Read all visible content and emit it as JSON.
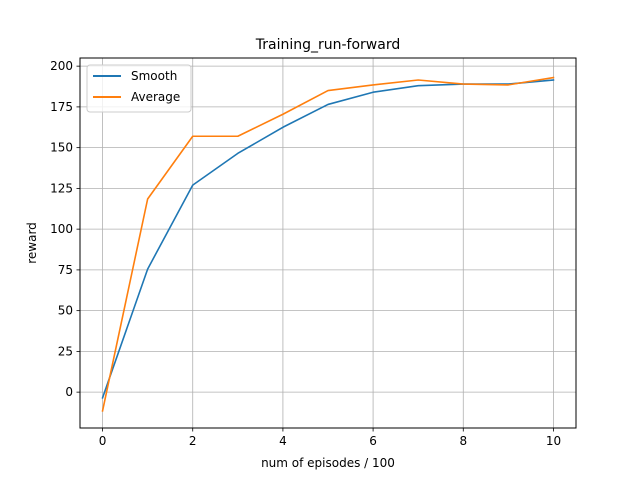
{
  "chart_data": {
    "type": "line",
    "title": "Training_run-forward",
    "xlabel": "num of episodes / 100",
    "ylabel": "reward",
    "xlim": [
      -0.5,
      10.5
    ],
    "ylim": [
      -22,
      205
    ],
    "xticks": [
      0,
      2,
      4,
      6,
      8,
      10
    ],
    "yticks": [
      0,
      25,
      50,
      75,
      100,
      125,
      150,
      175,
      200
    ],
    "grid": true,
    "legend_position": "top-left",
    "x": [
      0,
      1,
      2,
      3,
      4,
      5,
      6,
      7,
      8,
      9,
      10
    ],
    "series": [
      {
        "name": "Smooth",
        "color": "#1f77b4",
        "values": [
          -3.5,
          75.5,
          127,
          146.5,
          162.5,
          176.5,
          184,
          188,
          189,
          189,
          191.5
        ]
      },
      {
        "name": "Average",
        "color": "#ff7f0e",
        "values": [
          -11.5,
          118.5,
          157,
          157,
          170.5,
          185,
          188.5,
          191.5,
          189,
          188.5,
          193
        ]
      }
    ]
  }
}
